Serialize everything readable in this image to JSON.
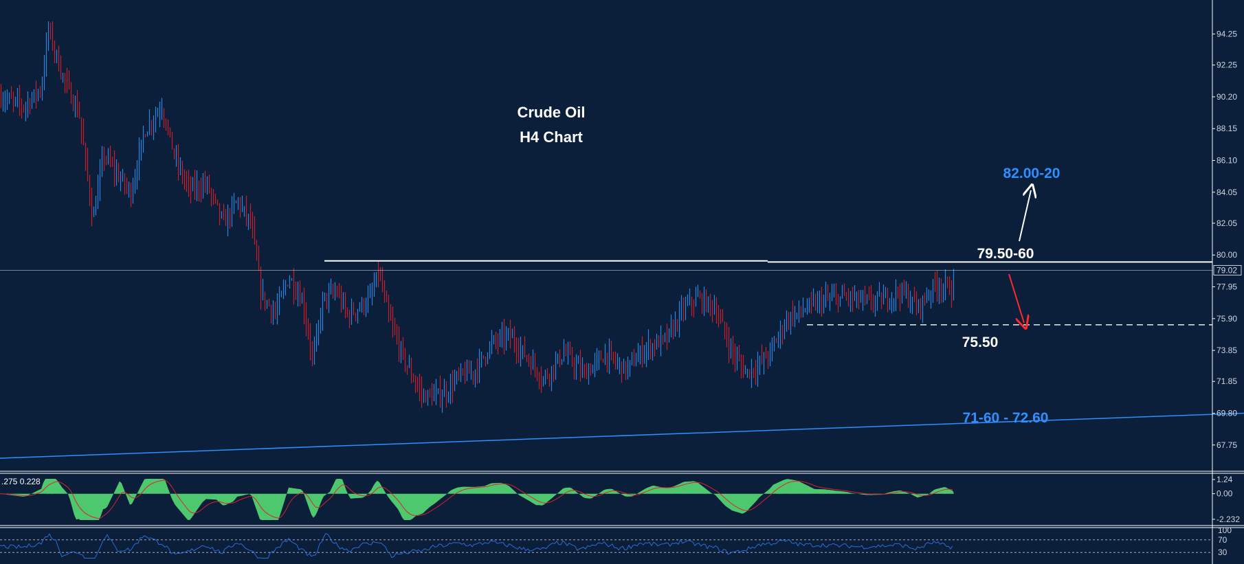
{
  "chart_data": {
    "type": "candlestick",
    "title": "Crude Oil",
    "subtitle": "H4 Chart",
    "ylim": [
      66.5,
      96.0
    ],
    "y_ticks": [
      "94.25",
      "92.25",
      "90.20",
      "88.15",
      "86.10",
      "84.05",
      "82.05",
      "80.00",
      "77.95",
      "75.90",
      "73.85",
      "71.85",
      "69.80",
      "67.75"
    ],
    "current_price": "79.02",
    "colors": {
      "bull": "#2a86e0",
      "bear": "#c8202a",
      "background": "#0b1e3a",
      "grid": "#ffffff"
    },
    "price_path": [
      [
        0,
        90.2
      ],
      [
        35,
        89.6
      ],
      [
        60,
        90.8
      ],
      [
        70,
        94.6
      ],
      [
        90,
        91.6
      ],
      [
        115,
        89.0
      ],
      [
        135,
        82.2
      ],
      [
        150,
        86.5
      ],
      [
        170,
        85.2
      ],
      [
        190,
        84.0
      ],
      [
        210,
        88.0
      ],
      [
        235,
        89.6
      ],
      [
        255,
        86.1
      ],
      [
        275,
        84.2
      ],
      [
        300,
        84.6
      ],
      [
        325,
        82.0
      ],
      [
        345,
        83.5
      ],
      [
        365,
        82.0
      ],
      [
        380,
        77.4
      ],
      [
        400,
        76.2
      ],
      [
        420,
        78.6
      ],
      [
        440,
        77.0
      ],
      [
        455,
        73.2
      ],
      [
        470,
        77.2
      ],
      [
        490,
        77.6
      ],
      [
        505,
        76.1
      ],
      [
        525,
        76.7
      ],
      [
        540,
        77.3
      ],
      [
        550,
        78.9
      ],
      [
        565,
        76.0
      ],
      [
        585,
        73.5
      ],
      [
        600,
        72.1
      ],
      [
        615,
        70.9
      ],
      [
        635,
        70.9
      ],
      [
        650,
        71.2
      ],
      [
        665,
        72.1
      ],
      [
        690,
        72.5
      ],
      [
        715,
        74.3
      ],
      [
        740,
        74.8
      ],
      [
        765,
        73.5
      ],
      [
        790,
        72.0
      ],
      [
        820,
        73.7
      ],
      [
        850,
        72.3
      ],
      [
        880,
        73.6
      ],
      [
        910,
        72.6
      ],
      [
        940,
        74.0
      ],
      [
        970,
        74.6
      ],
      [
        995,
        76.6
      ],
      [
        1015,
        77.2
      ],
      [
        1040,
        76.6
      ],
      [
        1065,
        73.7
      ],
      [
        1085,
        72.4
      ],
      [
        1100,
        72.8
      ],
      [
        1120,
        73.7
      ],
      [
        1145,
        75.9
      ],
      [
        1175,
        76.6
      ],
      [
        1200,
        77.1
      ],
      [
        1230,
        77.3
      ],
      [
        1260,
        77.0
      ],
      [
        1285,
        77.1
      ],
      [
        1310,
        77.7
      ],
      [
        1335,
        76.6
      ],
      [
        1360,
        78.1
      ],
      [
        1385,
        77.8
      ],
      [
        1400,
        78.9
      ]
    ],
    "levels": [
      {
        "label": "82.00-20",
        "price": 82.1,
        "color": "#2f8fff"
      },
      {
        "label": "79.50-60",
        "price": 79.55,
        "color": "#ffffff"
      },
      {
        "label": "75.50",
        "price": 75.5,
        "color": "#ffffff"
      },
      {
        "label": "71-60 - 72.60",
        "price": 72.1,
        "color": "#2f8fff"
      }
    ],
    "trendline": {
      "from": [
        0,
        66.9
      ],
      "to": [
        1810,
        69.8
      ],
      "color": "#2f8fff"
    },
    "macd": {
      "label": ".275 0.228",
      "ticks": [
        "1.24",
        "0.00",
        "-2.232"
      ],
      "ylim": [
        -2.6,
        1.6
      ]
    },
    "rsi": {
      "ticks": [
        "100",
        "70",
        "30"
      ],
      "ylim": [
        0,
        100
      ]
    }
  }
}
